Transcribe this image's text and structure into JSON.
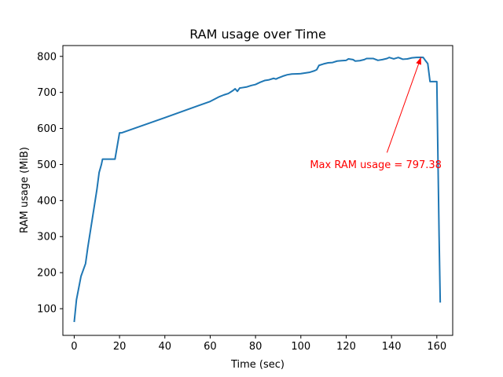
{
  "chart_data": {
    "type": "line",
    "title": "RAM usage over Time",
    "xlabel": "Time (sec)",
    "ylabel": "RAM usage (MiB)",
    "xlim": [
      -5,
      167
    ],
    "ylim": [
      26,
      830
    ],
    "xticks": [
      0,
      20,
      40,
      60,
      80,
      100,
      120,
      140,
      160
    ],
    "yticks": [
      100,
      200,
      300,
      400,
      500,
      600,
      700,
      800
    ],
    "grid": false,
    "legend": "none",
    "series": [
      {
        "color": "#1f77b4",
        "points": [
          [
            0,
            63
          ],
          [
            1,
            125
          ],
          [
            3,
            190
          ],
          [
            5,
            225
          ],
          [
            6,
            270
          ],
          [
            8,
            350
          ],
          [
            10,
            430
          ],
          [
            11,
            478
          ],
          [
            12,
            500
          ],
          [
            12.5,
            515
          ],
          [
            18,
            515
          ],
          [
            20,
            588
          ],
          [
            21,
            588
          ],
          [
            40,
            630
          ],
          [
            60,
            675
          ],
          [
            64,
            688
          ],
          [
            66,
            693
          ],
          [
            68,
            697
          ],
          [
            70,
            705
          ],
          [
            71,
            710
          ],
          [
            72,
            703
          ],
          [
            73,
            712
          ],
          [
            74,
            713
          ],
          [
            76,
            715
          ],
          [
            78,
            719
          ],
          [
            80,
            722
          ],
          [
            82,
            728
          ],
          [
            84,
            733
          ],
          [
            86,
            735
          ],
          [
            88,
            739
          ],
          [
            89,
            737
          ],
          [
            90,
            740
          ],
          [
            92,
            745
          ],
          [
            94,
            749
          ],
          [
            96,
            751
          ],
          [
            100,
            752
          ],
          [
            104,
            756
          ],
          [
            106,
            760
          ],
          [
            107,
            763
          ],
          [
            108,
            775
          ],
          [
            110,
            779
          ],
          [
            112,
            782
          ],
          [
            114,
            783
          ],
          [
            116,
            787
          ],
          [
            118,
            788
          ],
          [
            120,
            789
          ],
          [
            121,
            793
          ],
          [
            123,
            791
          ],
          [
            124,
            787
          ],
          [
            126,
            788
          ],
          [
            128,
            791
          ],
          [
            129,
            794
          ],
          [
            132,
            794
          ],
          [
            134,
            789
          ],
          [
            136,
            791
          ],
          [
            138,
            794
          ],
          [
            139,
            797
          ],
          [
            141,
            793
          ],
          [
            143,
            797
          ],
          [
            145,
            792
          ],
          [
            147,
            793
          ],
          [
            149,
            796
          ],
          [
            151,
            797
          ],
          [
            153,
            797.38
          ],
          [
            154,
            797
          ],
          [
            155,
            788
          ],
          [
            156,
            780
          ],
          [
            157,
            730
          ],
          [
            160,
            730
          ],
          [
            161,
            300
          ],
          [
            161.5,
            117
          ]
        ]
      }
    ],
    "annotation": {
      "text": "Max RAM usage = 797.38",
      "color": "#ff0000",
      "text_pos": [
        104,
        500
      ],
      "arrow_start": [
        138,
        533
      ],
      "arrow_end": [
        153,
        797.38
      ]
    }
  }
}
